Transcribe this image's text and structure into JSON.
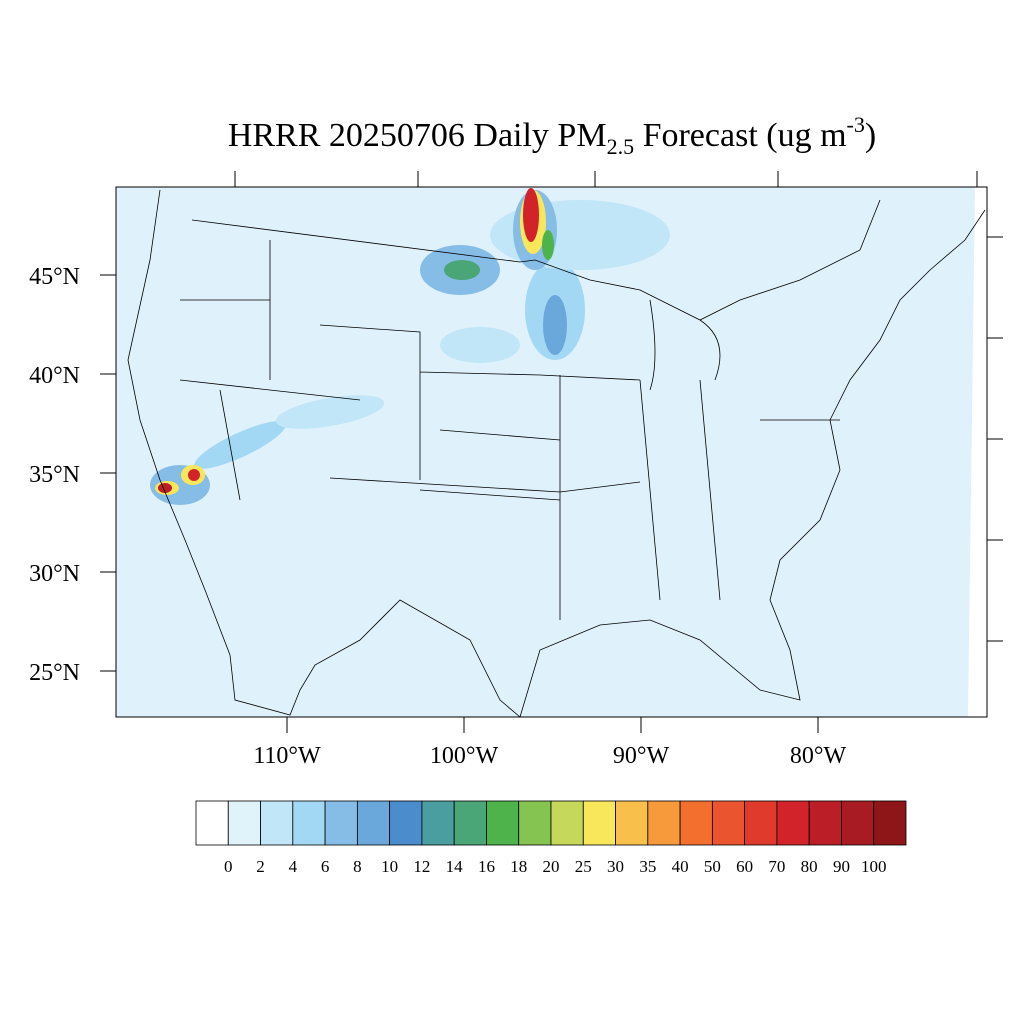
{
  "map": {
    "title": {
      "main": "HRRR 20250706 Daily PM",
      "subscript": "2.5",
      "after": " Forecast (ug m",
      "superscript": "-3",
      "end": ")"
    },
    "lat_labels": [
      {
        "value": 45,
        "label": "45°N"
      },
      {
        "value": 40,
        "label": "40°N"
      },
      {
        "value": 35,
        "label": "35°N"
      },
      {
        "value": 30,
        "label": "30°N"
      },
      {
        "value": 25,
        "label": "25°N"
      }
    ],
    "lon_labels": [
      {
        "value": -110,
        "label": "110°W"
      },
      {
        "value": -100,
        "label": "100°W"
      },
      {
        "value": -90,
        "label": "90°W"
      },
      {
        "value": -80,
        "label": "80°W"
      }
    ],
    "colorbar": {
      "levels": [
        0,
        2,
        4,
        6,
        8,
        10,
        12,
        14,
        16,
        18,
        20,
        25,
        30,
        35,
        40,
        50,
        60,
        70,
        80,
        90,
        100
      ],
      "colors": [
        "#ffffff",
        "#e0f3fb",
        "#c0e6f8",
        "#a3d8f4",
        "#86bde6",
        "#6aa8dc",
        "#4a8ccc",
        "#4a9ea0",
        "#4aa577",
        "#4db34a",
        "#85c450",
        "#c5d85a",
        "#f8e75a",
        "#f8c04a",
        "#f69a3c",
        "#f36f2e",
        "#ea5530",
        "#e03a2c",
        "#d2232a",
        "#bb1e27",
        "#a91b22",
        "#8f1618"
      ]
    }
  }
}
